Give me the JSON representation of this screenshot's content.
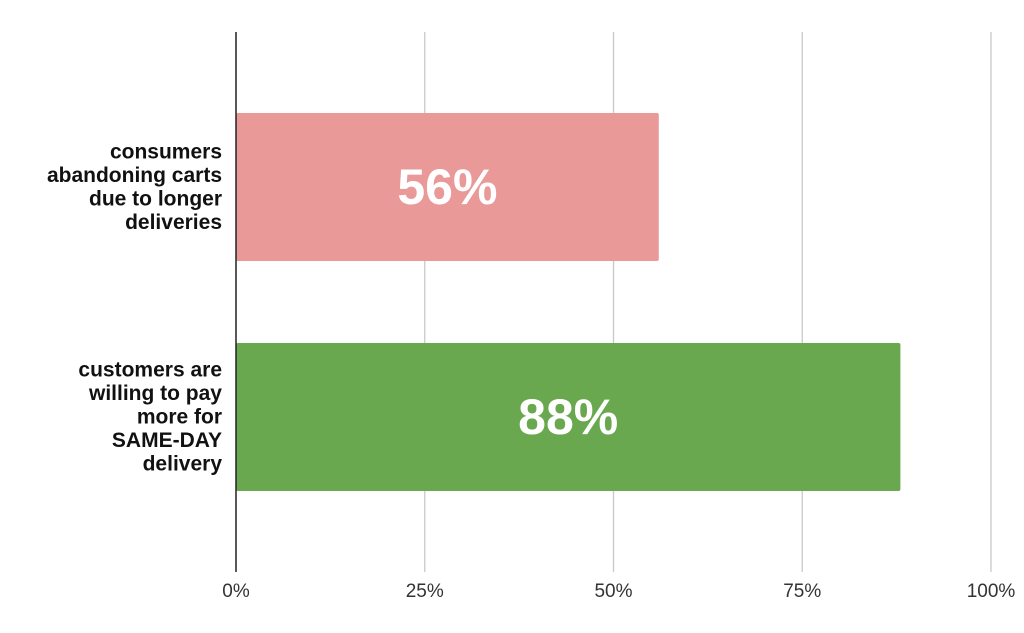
{
  "chart_data": {
    "type": "bar",
    "orientation": "horizontal",
    "categories": [
      [
        "consumers",
        "abandoning carts",
        "due to longer",
        "deliveries"
      ],
      [
        "customers are",
        "willing to pay",
        "more for",
        "SAME-DAY",
        "delivery"
      ]
    ],
    "values": [
      56,
      88
    ],
    "data_labels": [
      "56%",
      "88%"
    ],
    "bar_colors": [
      "#ea9999",
      "#6aa84f"
    ],
    "data_label_color": "#ffffff",
    "xlim": [
      0,
      100
    ],
    "x_ticks": [
      0,
      25,
      50,
      75,
      100
    ],
    "x_tick_labels": [
      "0%",
      "25%",
      "50%",
      "75%",
      "100%"
    ],
    "grid": true,
    "legend": "none",
    "title": "",
    "xlabel": "",
    "ylabel": ""
  }
}
